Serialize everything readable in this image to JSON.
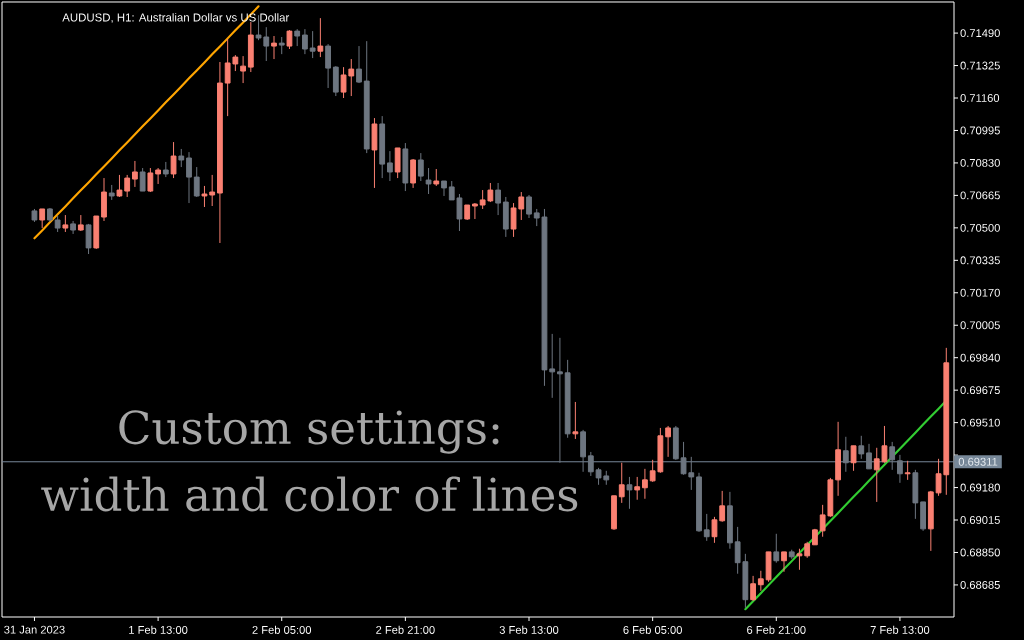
{
  "chart_data": {
    "type": "candlestick",
    "title": "AUDUSD, H1: Australian Dollar vs US Dollar",
    "annotations": [
      "Custom settings:",
      "width and color of lines"
    ],
    "categories": [
      "31 Jan 2023",
      null,
      null,
      null,
      null,
      null,
      null,
      null,
      null,
      null,
      null,
      null,
      null,
      null,
      null,
      null,
      "1 Feb 13:00",
      null,
      null,
      null,
      null,
      null,
      null,
      null,
      null,
      null,
      null,
      null,
      null,
      null,
      null,
      null,
      "2 Feb 05:00",
      null,
      null,
      null,
      null,
      null,
      null,
      null,
      null,
      null,
      null,
      null,
      null,
      null,
      null,
      null,
      "2 Feb 21:00",
      null,
      null,
      null,
      null,
      null,
      null,
      null,
      null,
      null,
      null,
      null,
      null,
      null,
      null,
      null,
      "3 Feb 13:00",
      null,
      null,
      null,
      null,
      null,
      null,
      null,
      null,
      null,
      null,
      null,
      null,
      null,
      null,
      null,
      "6 Feb 05:00",
      null,
      null,
      null,
      null,
      null,
      null,
      null,
      null,
      null,
      null,
      null,
      null,
      null,
      null,
      null,
      "6 Feb 21:00",
      null,
      null,
      null,
      null,
      null,
      null,
      null,
      null,
      null,
      null,
      null,
      null,
      null,
      null,
      null,
      "7 Feb 13:00",
      null,
      null,
      null,
      null,
      null,
      null
    ],
    "ohlc": [
      [
        0.70586,
        0.70596,
        0.7053,
        0.7054
      ],
      [
        0.7054,
        0.70596,
        0.70499,
        0.70596
      ],
      [
        0.70596,
        0.70601,
        0.7053,
        0.7054
      ],
      [
        0.7054,
        0.7056,
        0.70479,
        0.70499
      ],
      [
        0.70499,
        0.70565,
        0.70479,
        0.70515
      ],
      [
        0.7052,
        0.70535,
        0.70469,
        0.70489
      ],
      [
        0.70489,
        0.70565,
        0.70484,
        0.70515
      ],
      [
        0.70515,
        0.7052,
        0.70367,
        0.70398
      ],
      [
        0.70398,
        0.7056,
        0.70393,
        0.7056
      ],
      [
        0.70555,
        0.70753,
        0.70535,
        0.70682
      ],
      [
        0.70677,
        0.70718,
        0.70642,
        0.70662
      ],
      [
        0.70662,
        0.70769,
        0.70657,
        0.70692
      ],
      [
        0.70687,
        0.70769,
        0.70657,
        0.70753
      ],
      [
        0.70748,
        0.7084,
        0.70708,
        0.70784
      ],
      [
        0.70784,
        0.70804,
        0.70687,
        0.70687
      ],
      [
        0.70687,
        0.70804,
        0.70682,
        0.70779
      ],
      [
        0.70774,
        0.70804,
        0.70723,
        0.70794
      ],
      [
        0.70794,
        0.70835,
        0.70758,
        0.70774
      ],
      [
        0.70774,
        0.70936,
        0.70753,
        0.70865
      ],
      [
        0.70865,
        0.70901,
        0.70809,
        0.70845
      ],
      [
        0.70855,
        0.70885,
        0.70626,
        0.70758
      ],
      [
        0.70758,
        0.70809,
        0.70657,
        0.70662
      ],
      [
        0.70662,
        0.70713,
        0.70606,
        0.70672
      ],
      [
        0.70667,
        0.70769,
        0.70611,
        0.70682
      ],
      [
        0.70677,
        0.71343,
        0.70423,
        0.71236
      ],
      [
        0.71236,
        0.7146,
        0.71068,
        0.71338
      ],
      [
        0.71333,
        0.71378,
        0.71297,
        0.71368
      ],
      [
        0.71297,
        0.71373,
        0.71236,
        0.71322
      ],
      [
        0.71317,
        0.71546,
        0.71292,
        0.7148
      ],
      [
        0.7148,
        0.71581,
        0.71454,
        0.71465
      ],
      [
        0.7147,
        0.7152,
        0.71348,
        0.71424
      ],
      [
        0.71424,
        0.71475,
        0.71358,
        0.71439
      ],
      [
        0.71439,
        0.7147,
        0.71383,
        0.71429
      ],
      [
        0.71424,
        0.71505,
        0.71409,
        0.715
      ],
      [
        0.715,
        0.7151,
        0.71424,
        0.71475
      ],
      [
        0.7148,
        0.7151,
        0.71383,
        0.71409
      ],
      [
        0.71414,
        0.715,
        0.71363,
        0.71398
      ],
      [
        0.71398,
        0.71566,
        0.71368,
        0.71424
      ],
      [
        0.71424,
        0.71434,
        0.71211,
        0.71312
      ],
      [
        0.71317,
        0.71322,
        0.7117,
        0.7119
      ],
      [
        0.7119,
        0.71317,
        0.7116,
        0.71277
      ],
      [
        0.71272,
        0.71358,
        0.7117,
        0.71307
      ],
      [
        0.71307,
        0.71424,
        0.71236,
        0.71241
      ],
      [
        0.71246,
        0.71449,
        0.7088,
        0.70901
      ],
      [
        0.70896,
        0.71058,
        0.70703,
        0.71028
      ],
      [
        0.71028,
        0.71068,
        0.70753,
        0.70824
      ],
      [
        0.7083,
        0.7089,
        0.70738,
        0.70784
      ],
      [
        0.70784,
        0.70906,
        0.70753,
        0.70906
      ],
      [
        0.70901,
        0.70931,
        0.70687,
        0.70728
      ],
      [
        0.70728,
        0.7085,
        0.70703,
        0.70845
      ],
      [
        0.70845,
        0.7088,
        0.70738,
        0.70763
      ],
      [
        0.70743,
        0.70804,
        0.70672,
        0.70723
      ],
      [
        0.70723,
        0.70799,
        0.70713,
        0.70738
      ],
      [
        0.70738,
        0.70738,
        0.70662,
        0.70703
      ],
      [
        0.70708,
        0.70738,
        0.70642,
        0.70642
      ],
      [
        0.70652,
        0.70672,
        0.70484,
        0.70545
      ],
      [
        0.70545,
        0.70616,
        0.7054,
        0.70616
      ],
      [
        0.70611,
        0.70626,
        0.70545,
        0.70621
      ],
      [
        0.70616,
        0.70692,
        0.70596,
        0.70642
      ],
      [
        0.70637,
        0.70728,
        0.70631,
        0.70692
      ],
      [
        0.70692,
        0.70728,
        0.70565,
        0.70626
      ],
      [
        0.70631,
        0.70657,
        0.70454,
        0.70494
      ],
      [
        0.70494,
        0.70626,
        0.70454,
        0.70601
      ],
      [
        0.70596,
        0.70682,
        0.7054,
        0.70657
      ],
      [
        0.70657,
        0.70667,
        0.7055,
        0.7057
      ],
      [
        0.70576,
        0.70596,
        0.70509,
        0.7055
      ],
      [
        0.70555,
        0.70596,
        0.69697,
        0.69778
      ],
      [
        0.69783,
        0.69961,
        0.69636,
        0.69768
      ],
      [
        0.69768,
        0.69941,
        0.69306,
        0.69758
      ],
      [
        0.69763,
        0.69829,
        0.69433,
        0.69453
      ],
      [
        0.69453,
        0.69615,
        0.69427,
        0.69463
      ],
      [
        0.69463,
        0.69473,
        0.6926,
        0.69336
      ],
      [
        0.69341,
        0.69361,
        0.69239,
        0.6926
      ],
      [
        0.6927,
        0.6928,
        0.69194,
        0.69229
      ],
      [
        0.69239,
        0.69265,
        0.69194,
        0.69219
      ],
      [
        0.6897,
        0.69138,
        0.68965,
        0.69138
      ],
      [
        0.69133,
        0.69306,
        0.69102,
        0.69194
      ],
      [
        0.69194,
        0.69234,
        0.69072,
        0.69168
      ],
      [
        0.69168,
        0.69234,
        0.69118,
        0.69184
      ],
      [
        0.69179,
        0.69275,
        0.69123,
        0.69219
      ],
      [
        0.69214,
        0.69321,
        0.69209,
        0.69265
      ],
      [
        0.6926,
        0.69483,
        0.69255,
        0.69443
      ],
      [
        0.69438,
        0.69493,
        0.69336,
        0.69483
      ],
      [
        0.69483,
        0.69493,
        0.69321,
        0.69326
      ],
      [
        0.69331,
        0.69412,
        0.69245,
        0.6925
      ],
      [
        0.69255,
        0.69336,
        0.69168,
        0.69234
      ],
      [
        0.69234,
        0.69255,
        0.68955,
        0.6896
      ],
      [
        0.68965,
        0.69046,
        0.68909,
        0.6893
      ],
      [
        0.6893,
        0.69031,
        0.68899,
        0.69016
      ],
      [
        0.69011,
        0.69163,
        0.69006,
        0.69087
      ],
      [
        0.69087,
        0.69158,
        0.68869,
        0.68899
      ],
      [
        0.68904,
        0.6898,
        0.68742,
        0.68798
      ],
      [
        0.68803,
        0.68843,
        0.68569,
        0.6861
      ],
      [
        0.6861,
        0.68731,
        0.68604,
        0.68691
      ],
      [
        0.68686,
        0.68757,
        0.68655,
        0.68716
      ],
      [
        0.68711,
        0.68853,
        0.68701,
        0.68853
      ],
      [
        0.68853,
        0.68945,
        0.68798,
        0.68808
      ],
      [
        0.68808,
        0.68853,
        0.68752,
        0.68853
      ],
      [
        0.68853,
        0.68864,
        0.68818,
        0.68828
      ],
      [
        0.68833,
        0.68869,
        0.68762,
        0.68843
      ],
      [
        0.68833,
        0.68904,
        0.68823,
        0.68894
      ],
      [
        0.68889,
        0.6897,
        0.68889,
        0.68965
      ],
      [
        0.6896,
        0.69092,
        0.6893,
        0.69041
      ],
      [
        0.69036,
        0.69229,
        0.69031,
        0.69219
      ],
      [
        0.69219,
        0.69514,
        0.69138,
        0.69372
      ],
      [
        0.69367,
        0.69438,
        0.6926,
        0.69306
      ],
      [
        0.69306,
        0.69392,
        0.69265,
        0.69392
      ],
      [
        0.69392,
        0.69443,
        0.69326,
        0.69351
      ],
      [
        0.69356,
        0.69402,
        0.69275,
        0.69275
      ],
      [
        0.6927,
        0.69382,
        0.69107,
        0.69326
      ],
      [
        0.69311,
        0.69493,
        0.69306,
        0.69392
      ],
      [
        0.69387,
        0.69412,
        0.6927,
        0.69321
      ],
      [
        0.69316,
        0.69346,
        0.69204,
        0.6925
      ],
      [
        0.6925,
        0.69316,
        0.69219,
        0.69255
      ],
      [
        0.69255,
        0.6927,
        0.69021,
        0.69102
      ],
      [
        0.69107,
        0.69107,
        0.6896,
        0.6897
      ],
      [
        0.6897,
        0.69163,
        0.68858,
        0.69158
      ],
      [
        0.69153,
        0.69326,
        0.69138,
        0.6925
      ],
      [
        0.69245,
        0.6989,
        0.69143,
        0.69814
      ]
    ],
    "colors": [
      "#6e7680",
      "#fa8072",
      "#6e7680",
      "#6e7680",
      "#fa8072",
      "#6e7680",
      "#fa8072",
      "#6e7680",
      "#fa8072",
      "#fa8072",
      "#6e7680",
      "#fa8072",
      "#fa8072",
      "#fa8072",
      "#6e7680",
      "#fa8072",
      "#fa8072",
      "#6e7680",
      "#fa8072",
      "#6e7680",
      "#6e7680",
      "#6e7680",
      "#fa8072",
      "#fa8072",
      "#fa8072",
      "#fa8072",
      "#fa8072",
      "#fa8072",
      "#fa8072",
      "#6e7680",
      "#6e7680",
      "#fa8072",
      "#6e7680",
      "#fa8072",
      "#6e7680",
      "#6e7680",
      "#6e7680",
      "#fa8072",
      "#6e7680",
      "#6e7680",
      "#fa8072",
      "#fa8072",
      "#6e7680",
      "#6e7680",
      "#fa8072",
      "#6e7680",
      "#6e7680",
      "#fa8072",
      "#6e7680",
      "#fa8072",
      "#6e7680",
      "#6e7680",
      "#fa8072",
      "#6e7680",
      "#6e7680",
      "#6e7680",
      "#fa8072",
      "#fa8072",
      "#fa8072",
      "#fa8072",
      "#6e7680",
      "#6e7680",
      "#fa8072",
      "#fa8072",
      "#6e7680",
      "#6e7680",
      "#6e7680",
      "#6e7680",
      "#6e7680",
      "#6e7680",
      "#fa8072",
      "#6e7680",
      "#6e7680",
      "#6e7680",
      "#6e7680",
      "#fa8072",
      "#fa8072",
      "#6e7680",
      "#fa8072",
      "#fa8072",
      "#fa8072",
      "#fa8072",
      "#fa8072",
      "#6e7680",
      "#6e7680",
      "#6e7680",
      "#6e7680",
      "#6e7680",
      "#fa8072",
      "#fa8072",
      "#6e7680",
      "#6e7680",
      "#6e7680",
      "#fa8072",
      "#fa8072",
      "#fa8072",
      "#6e7680",
      "#fa8072",
      "#6e7680",
      "#fa8072",
      "#fa8072",
      "#fa8072",
      "#fa8072",
      "#fa8072",
      "#fa8072",
      "#6e7680",
      "#fa8072",
      "#6e7680",
      "#6e7680",
      "#fa8072",
      "#fa8072",
      "#6e7680",
      "#6e7680",
      "#fa8072",
      "#6e7680",
      "#6e7680",
      "#fa8072",
      "#fa8072",
      "#fa8072"
    ],
    "series": [
      {
        "type": "line",
        "color": "#ffa500",
        "values": [
          0.70447,
          0.70487,
          0.70528,
          0.70569,
          0.70609,
          0.7065,
          0.70691,
          0.70731,
          0.70772,
          0.70812,
          0.70853,
          0.70894,
          0.70934,
          0.70975,
          0.71016,
          0.71056,
          0.71097,
          0.71138,
          0.71178,
          0.71219,
          0.7126,
          0.713,
          0.71341,
          0.71382,
          0.71422,
          0.71463,
          0.71504,
          0.71544,
          0.71585,
          0.71626,
          null,
          null,
          null,
          null,
          null,
          null,
          null,
          null,
          null,
          null,
          null,
          null,
          null,
          null,
          null,
          null,
          null,
          null,
          null,
          null,
          null,
          null,
          null,
          null,
          null,
          null,
          null,
          null,
          null,
          null,
          null,
          null,
          null,
          null,
          null,
          null,
          null,
          null,
          null,
          null,
          null,
          null,
          null,
          null,
          null,
          null,
          null,
          null,
          null,
          null,
          null,
          null,
          null,
          null,
          null,
          null,
          null,
          null,
          null,
          null,
          null,
          null,
          null,
          null,
          null,
          null,
          null,
          null,
          null,
          null,
          null,
          null,
          null,
          null,
          null,
          null,
          null,
          null,
          null,
          null,
          null,
          null,
          null,
          null,
          null,
          null,
          null,
          null,
          null
        ]
      },
      {
        "type": "line",
        "color": "#32cd32",
        "values": [
          null,
          null,
          null,
          null,
          null,
          null,
          null,
          null,
          null,
          null,
          null,
          null,
          null,
          null,
          null,
          null,
          null,
          null,
          null,
          null,
          null,
          null,
          null,
          null,
          null,
          null,
          null,
          null,
          null,
          null,
          null,
          null,
          null,
          null,
          null,
          null,
          null,
          null,
          null,
          null,
          null,
          null,
          null,
          null,
          null,
          null,
          null,
          null,
          null,
          null,
          null,
          null,
          null,
          null,
          null,
          null,
          null,
          null,
          null,
          null,
          null,
          null,
          null,
          null,
          null,
          null,
          null,
          null,
          null,
          null,
          null,
          null,
          null,
          null,
          null,
          null,
          null,
          null,
          null,
          null,
          null,
          null,
          null,
          null,
          null,
          null,
          null,
          null,
          null,
          null,
          null,
          null,
          0.68562,
          0.68602,
          0.68643,
          0.68684,
          0.68725,
          0.68766,
          0.68806,
          0.68847,
          0.68888,
          0.68929,
          0.68969,
          0.6901,
          0.69051,
          0.69092,
          0.69133,
          0.69173,
          0.69214,
          0.69255,
          0.69296,
          0.69337,
          0.69377,
          0.69418,
          0.69459,
          0.695,
          0.69541,
          0.69581,
          0.69622
        ]
      }
    ],
    "ref_lines": [
      {
        "axis": "y",
        "value": 0.69311,
        "label": "0.69311",
        "color": "#778899"
      }
    ],
    "ylim": [
      0.68522,
      0.71648
    ],
    "yticks": [
      {
        "value": 0.68685,
        "label": "0.68685"
      },
      {
        "value": 0.6885,
        "label": "0.68850"
      },
      {
        "value": 0.69015,
        "label": "0.69015"
      },
      {
        "value": 0.6918,
        "label": "0.69180"
      },
      {
        "value": 0.69345,
        "label": null
      },
      {
        "value": 0.6951,
        "label": "0.69510"
      },
      {
        "value": 0.69675,
        "label": "0.69675"
      },
      {
        "value": 0.6984,
        "label": "0.69840"
      },
      {
        "value": 0.70005,
        "label": "0.70005"
      },
      {
        "value": 0.7017,
        "label": "0.70170"
      },
      {
        "value": 0.70335,
        "label": "0.70335"
      },
      {
        "value": 0.705,
        "label": "0.70500"
      },
      {
        "value": 0.70665,
        "label": "0.70665"
      },
      {
        "value": 0.7083,
        "label": "0.70830"
      },
      {
        "value": 0.70995,
        "label": "0.70995"
      },
      {
        "value": 0.7116,
        "label": "0.71160"
      },
      {
        "value": 0.71325,
        "label": "0.71325"
      },
      {
        "value": 0.7149,
        "label": "0.71490"
      }
    ]
  }
}
